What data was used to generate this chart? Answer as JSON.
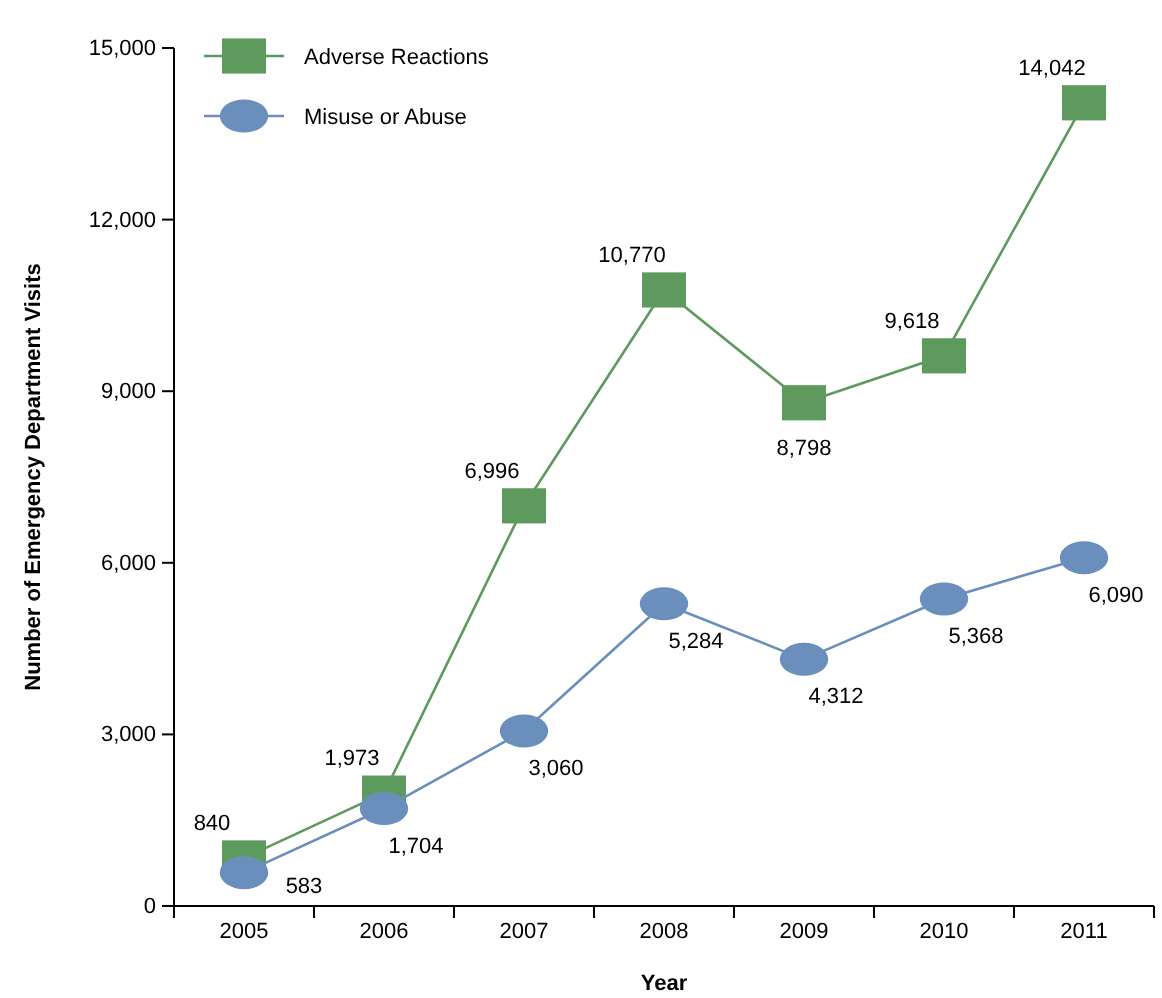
{
  "chart_data": {
    "type": "line",
    "xlabel": "Year",
    "ylabel": "Number of Emergency Department Visits",
    "categories": [
      "2005",
      "2006",
      "2007",
      "2008",
      "2009",
      "2010",
      "2011"
    ],
    "series": [
      {
        "name": "Adverse Reactions",
        "color": "#5e9a5e",
        "marker": "square",
        "values": [
          840,
          1973,
          6996,
          10770,
          8798,
          9618,
          14042
        ],
        "value_labels": [
          "840",
          "1,973",
          "6,996",
          "10,770",
          "8,798",
          "9,618",
          "14,042"
        ]
      },
      {
        "name": "Misuse or Abuse",
        "color": "#6b8fbd",
        "marker": "circle",
        "values": [
          583,
          1704,
          3060,
          5284,
          4312,
          5368,
          6090
        ],
        "value_labels": [
          "583",
          "1,704",
          "3,060",
          "5,284",
          "4,312",
          "5,368",
          "6,090"
        ]
      }
    ],
    "ylim": [
      0,
      15000
    ],
    "yticks": [
      {
        "value": 0,
        "label": "0"
      },
      {
        "value": 3000,
        "label": "3,000"
      },
      {
        "value": 6000,
        "label": "6,000"
      },
      {
        "value": 9000,
        "label": "9,000"
      },
      {
        "value": 12000,
        "label": "12,000"
      },
      {
        "value": 15000,
        "label": "15,000"
      }
    ],
    "legend": "top left",
    "grid": false
  }
}
